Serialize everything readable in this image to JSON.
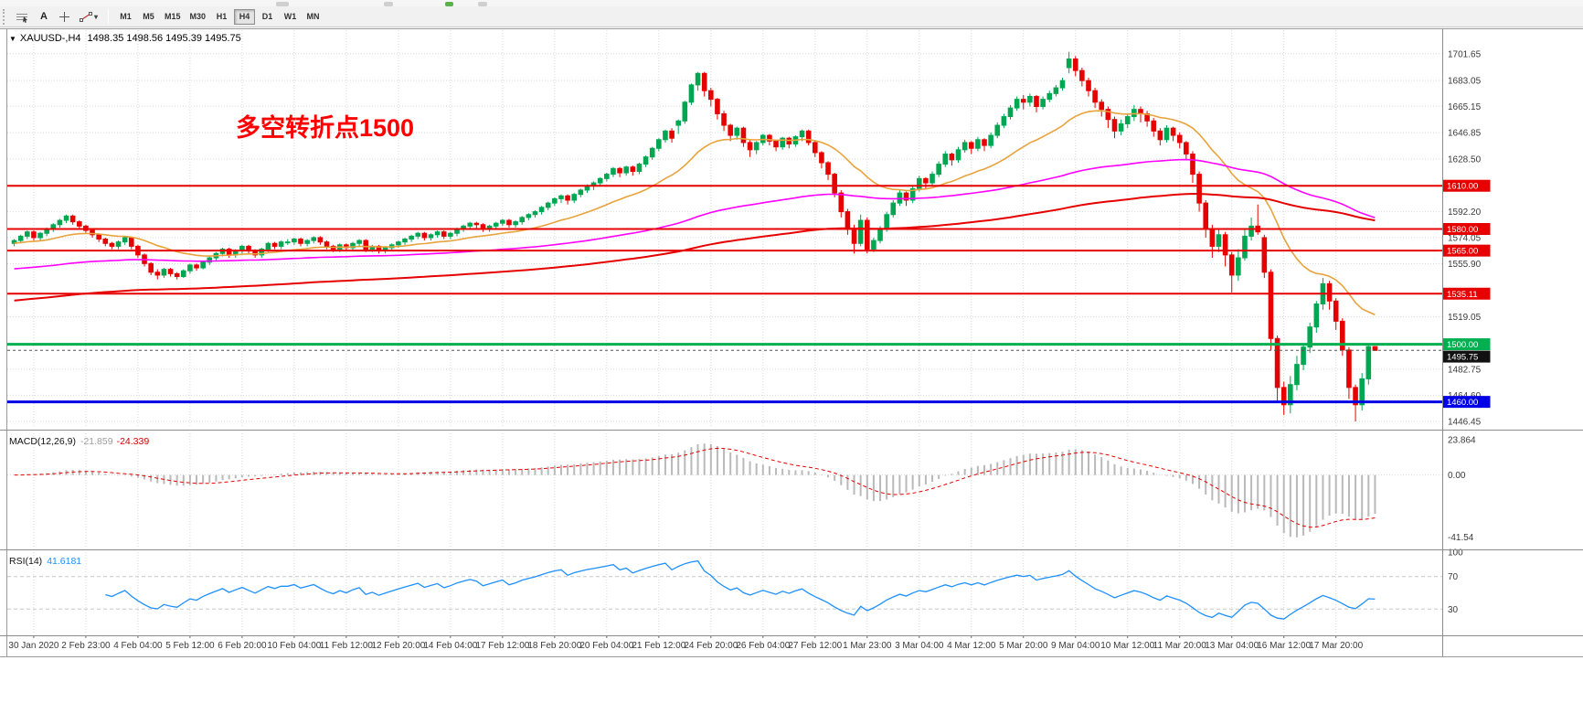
{
  "toolbar": {
    "text_tool_label": "A",
    "timeframes": [
      "M1",
      "M5",
      "M15",
      "M30",
      "H1",
      "H4",
      "D1",
      "W1",
      "MN"
    ],
    "active_timeframe": "H4"
  },
  "chart": {
    "title": "XAUUSD-,H4",
    "ohlc": "1498.35 1498.56 1495.39 1495.75",
    "annotation": {
      "text": "多空转折点1500",
      "color": "#fd0000"
    }
  },
  "chart_data": {
    "type": "candlestick",
    "symbol": "XAUUSD-",
    "period": "H4",
    "colors": {
      "up": "#00a651",
      "down": "#e60000",
      "grid": "#d9d9d9"
    },
    "price_range": [
      1442,
      1718
    ],
    "y_ticks": [
      1701.65,
      1683.05,
      1665.15,
      1646.85,
      1628.5,
      1592.2,
      1574.05,
      1555.9,
      1519.05,
      1482.75,
      1464.6,
      1446.45
    ],
    "x_labels": [
      "30 Jan 2020",
      "2 Feb 23:00",
      "4 Feb 04:00",
      "5 Feb 12:00",
      "6 Feb 20:00",
      "10 Feb 04:00",
      "11 Feb 12:00",
      "12 Feb 20:00",
      "14 Feb 04:00",
      "17 Feb 12:00",
      "18 Feb 20:00",
      "20 Feb 04:00",
      "21 Feb 12:00",
      "24 Feb 20:00",
      "26 Feb 04:00",
      "27 Feb 12:00",
      "1 Mar 23:00",
      "3 Mar 04:00",
      "4 Mar 12:00",
      "5 Mar 20:00",
      "9 Mar 04:00",
      "10 Mar 12:00",
      "11 Mar 20:00",
      "13 Mar 04:00",
      "16 Mar 12:00",
      "17 Mar 20:00"
    ],
    "hlines": [
      {
        "price": 1610.0,
        "label": "1610.00",
        "color": "#e60000",
        "width": 2
      },
      {
        "price": 1580.0,
        "label": "1580.00",
        "color": "#e60000",
        "width": 2
      },
      {
        "price": 1565.0,
        "label": "1565.00",
        "color": "#e60000",
        "width": 2
      },
      {
        "price": 1535.11,
        "label": "1535.11",
        "color": "#e60000",
        "width": 2
      },
      {
        "price": 1500.0,
        "label": "1500.00",
        "color": "#00b050",
        "width": 3
      },
      {
        "price": 1460.0,
        "label": "1460.00",
        "color": "#0000e6",
        "width": 3
      }
    ],
    "current_price": {
      "value": 1495.75,
      "label": "1495.75",
      "badge_color": "#111111"
    },
    "moving_averages": [
      {
        "name": "ma-fast",
        "period": 24,
        "seed": 1570,
        "color": "#e8a33c",
        "width": 1.6
      },
      {
        "name": "ma-mid",
        "period": 120,
        "seed": 1552,
        "color": "#ff00ff",
        "width": 1.6
      },
      {
        "name": "ma-slow",
        "period": 220,
        "seed": 1530,
        "color": "#e60000",
        "width": 2
      }
    ],
    "indicators": {
      "macd": {
        "label": "MACD(12,26,9)",
        "value_main": "-21.859",
        "value_signal": "-24.339",
        "fast": 12,
        "slow": 26,
        "signal": 9,
        "hist_color": "#b9b9b9",
        "signal_color": "#e60000",
        "axis": [
          {
            "v": 23.864,
            "label": "23.864"
          },
          {
            "v": 0,
            "label": "0.00"
          },
          {
            "v": -41.54,
            "label": "-41.54"
          }
        ]
      },
      "rsi": {
        "label": "RSI(14)",
        "value": "41.6181",
        "period": 14,
        "color": "#1e90ff",
        "levels": [
          70,
          30
        ],
        "axis": [
          {
            "v": 100,
            "label": "100"
          },
          {
            "v": 70,
            "label": "70"
          },
          {
            "v": 30,
            "label": "30"
          }
        ]
      }
    },
    "candles": [
      [
        1570,
        1573,
        1568,
        1572
      ],
      [
        1572,
        1576,
        1570,
        1575
      ],
      [
        1575,
        1579,
        1573,
        1578
      ],
      [
        1578,
        1579,
        1572,
        1574
      ],
      [
        1574,
        1578,
        1572,
        1577
      ],
      [
        1577,
        1581,
        1575,
        1580
      ],
      [
        1580,
        1584,
        1578,
        1583
      ],
      [
        1583,
        1587,
        1581,
        1586
      ],
      [
        1586,
        1590,
        1584,
        1589
      ],
      [
        1589,
        1590,
        1583,
        1585
      ],
      [
        1585,
        1586,
        1580,
        1582
      ],
      [
        1582,
        1583,
        1577,
        1579
      ],
      [
        1579,
        1580,
        1574,
        1576
      ],
      [
        1576,
        1577,
        1571,
        1573
      ],
      [
        1573,
        1574,
        1568,
        1570
      ],
      [
        1570,
        1571,
        1566,
        1568
      ],
      [
        1568,
        1572,
        1566,
        1571
      ],
      [
        1571,
        1575,
        1569,
        1574
      ],
      [
        1574,
        1574,
        1566,
        1568
      ],
      [
        1568,
        1569,
        1560,
        1562
      ],
      [
        1562,
        1563,
        1554,
        1556
      ],
      [
        1556,
        1557,
        1548,
        1550
      ],
      [
        1550,
        1552,
        1545,
        1548
      ],
      [
        1548,
        1553,
        1546,
        1552
      ],
      [
        1552,
        1553,
        1547,
        1549
      ],
      [
        1549,
        1550,
        1545,
        1547
      ],
      [
        1547,
        1552,
        1546,
        1551
      ],
      [
        1551,
        1556,
        1549,
        1555
      ],
      [
        1555,
        1556,
        1551,
        1553
      ],
      [
        1553,
        1558,
        1552,
        1557
      ],
      [
        1557,
        1561,
        1555,
        1560
      ],
      [
        1560,
        1564,
        1558,
        1563
      ],
      [
        1563,
        1567,
        1561,
        1566
      ],
      [
        1566,
        1567,
        1560,
        1562
      ],
      [
        1562,
        1566,
        1560,
        1565
      ],
      [
        1565,
        1569,
        1563,
        1568
      ],
      [
        1568,
        1569,
        1563,
        1565
      ],
      [
        1565,
        1566,
        1560,
        1562
      ],
      [
        1562,
        1567,
        1560,
        1566
      ],
      [
        1566,
        1571,
        1564,
        1570
      ],
      [
        1570,
        1571,
        1566,
        1568
      ],
      [
        1568,
        1572,
        1566,
        1571
      ],
      [
        1571,
        1573,
        1569,
        1571
      ],
      [
        1571,
        1574,
        1569,
        1573
      ],
      [
        1573,
        1574,
        1568,
        1570
      ],
      [
        1570,
        1573,
        1568,
        1572
      ],
      [
        1572,
        1575,
        1570,
        1574
      ],
      [
        1574,
        1575,
        1569,
        1571
      ],
      [
        1571,
        1572,
        1566,
        1568
      ],
      [
        1568,
        1569,
        1564,
        1566
      ],
      [
        1566,
        1570,
        1564,
        1569
      ],
      [
        1569,
        1570,
        1565,
        1567
      ],
      [
        1567,
        1571,
        1565,
        1570
      ],
      [
        1570,
        1573,
        1568,
        1572
      ],
      [
        1572,
        1573,
        1564,
        1566
      ],
      [
        1566,
        1569,
        1564,
        1568
      ],
      [
        1568,
        1569,
        1563,
        1565
      ],
      [
        1565,
        1568,
        1563,
        1567
      ],
      [
        1567,
        1570,
        1565,
        1569
      ],
      [
        1569,
        1572,
        1567,
        1571
      ],
      [
        1571,
        1574,
        1569,
        1573
      ],
      [
        1573,
        1576,
        1571,
        1575
      ],
      [
        1575,
        1578,
        1573,
        1577
      ],
      [
        1577,
        1578,
        1572,
        1574
      ],
      [
        1574,
        1577,
        1572,
        1576
      ],
      [
        1576,
        1579,
        1574,
        1578
      ],
      [
        1578,
        1579,
        1573,
        1575
      ],
      [
        1575,
        1578,
        1573,
        1577
      ],
      [
        1577,
        1581,
        1575,
        1580
      ],
      [
        1580,
        1583,
        1578,
        1582
      ],
      [
        1582,
        1585,
        1580,
        1584
      ],
      [
        1584,
        1585,
        1580,
        1583
      ],
      [
        1583,
        1584,
        1578,
        1580
      ],
      [
        1580,
        1583,
        1578,
        1582
      ],
      [
        1582,
        1585,
        1580,
        1584
      ],
      [
        1584,
        1587,
        1582,
        1586
      ],
      [
        1586,
        1587,
        1581,
        1583
      ],
      [
        1583,
        1586,
        1581,
        1585
      ],
      [
        1585,
        1589,
        1583,
        1588
      ],
      [
        1588,
        1591,
        1586,
        1590
      ],
      [
        1590,
        1593,
        1588,
        1592
      ],
      [
        1592,
        1596,
        1590,
        1595
      ],
      [
        1595,
        1599,
        1593,
        1598
      ],
      [
        1598,
        1602,
        1596,
        1601
      ],
      [
        1601,
        1604,
        1598,
        1603
      ],
      [
        1603,
        1604,
        1597,
        1600
      ],
      [
        1600,
        1605,
        1598,
        1604
      ],
      [
        1604,
        1608,
        1602,
        1607
      ],
      [
        1607,
        1611,
        1605,
        1610
      ],
      [
        1610,
        1613,
        1607,
        1612
      ],
      [
        1612,
        1616,
        1610,
        1615
      ],
      [
        1615,
        1619,
        1613,
        1618
      ],
      [
        1618,
        1623,
        1616,
        1622
      ],
      [
        1622,
        1623,
        1616,
        1619
      ],
      [
        1619,
        1624,
        1617,
        1623
      ],
      [
        1623,
        1624,
        1617,
        1620
      ],
      [
        1620,
        1626,
        1618,
        1625
      ],
      [
        1625,
        1631,
        1623,
        1630
      ],
      [
        1630,
        1637,
        1628,
        1636
      ],
      [
        1636,
        1643,
        1634,
        1642
      ],
      [
        1642,
        1649,
        1640,
        1648
      ],
      [
        1648,
        1650,
        1640,
        1643
      ],
      [
        1652,
        1656,
        1646,
        1655
      ],
      [
        1655,
        1669,
        1653,
        1668
      ],
      [
        1668,
        1681,
        1666,
        1680
      ],
      [
        1680,
        1689,
        1676,
        1688
      ],
      [
        1688,
        1689,
        1672,
        1676
      ],
      [
        1676,
        1678,
        1665,
        1670
      ],
      [
        1670,
        1671,
        1656,
        1660
      ],
      [
        1660,
        1662,
        1648,
        1652
      ],
      [
        1652,
        1653,
        1641,
        1645
      ],
      [
        1645,
        1651,
        1642,
        1650
      ],
      [
        1650,
        1651,
        1637,
        1640
      ],
      [
        1640,
        1642,
        1630,
        1635
      ],
      [
        1635,
        1641,
        1632,
        1640
      ],
      [
        1640,
        1646,
        1638,
        1645
      ],
      [
        1645,
        1646,
        1638,
        1641
      ],
      [
        1641,
        1642,
        1634,
        1637
      ],
      [
        1637,
        1644,
        1635,
        1643
      ],
      [
        1643,
        1644,
        1636,
        1639
      ],
      [
        1639,
        1645,
        1637,
        1644
      ],
      [
        1644,
        1649,
        1641,
        1648
      ],
      [
        1648,
        1649,
        1638,
        1640
      ],
      [
        1640,
        1641,
        1630,
        1633
      ],
      [
        1633,
        1634,
        1622,
        1626
      ],
      [
        1626,
        1627,
        1614,
        1618
      ],
      [
        1618,
        1619,
        1602,
        1605
      ],
      [
        1605,
        1607,
        1588,
        1592
      ],
      [
        1592,
        1594,
        1576,
        1580
      ],
      [
        1580,
        1583,
        1563,
        1570
      ],
      [
        1570,
        1590,
        1568,
        1586
      ],
      [
        1586,
        1588,
        1563,
        1566
      ],
      [
        1566,
        1574,
        1564,
        1572
      ],
      [
        1572,
        1582,
        1570,
        1580
      ],
      [
        1580,
        1592,
        1578,
        1590
      ],
      [
        1590,
        1600,
        1588,
        1598
      ],
      [
        1598,
        1607,
        1596,
        1605
      ],
      [
        1605,
        1606,
        1596,
        1600
      ],
      [
        1600,
        1610,
        1598,
        1608
      ],
      [
        1608,
        1617,
        1606,
        1615
      ],
      [
        1615,
        1616,
        1608,
        1612
      ],
      [
        1612,
        1620,
        1610,
        1618
      ],
      [
        1618,
        1627,
        1616,
        1625
      ],
      [
        1625,
        1634,
        1623,
        1632
      ],
      [
        1632,
        1633,
        1624,
        1628
      ],
      [
        1628,
        1637,
        1626,
        1635
      ],
      [
        1635,
        1642,
        1633,
        1640
      ],
      [
        1640,
        1641,
        1632,
        1636
      ],
      [
        1636,
        1644,
        1634,
        1642
      ],
      [
        1642,
        1643,
        1634,
        1638
      ],
      [
        1638,
        1647,
        1636,
        1645
      ],
      [
        1645,
        1654,
        1643,
        1652
      ],
      [
        1652,
        1660,
        1650,
        1658
      ],
      [
        1658,
        1666,
        1656,
        1664
      ],
      [
        1664,
        1672,
        1662,
        1670
      ],
      [
        1670,
        1673,
        1663,
        1668
      ],
      [
        1668,
        1674,
        1665,
        1672
      ],
      [
        1672,
        1673,
        1661,
        1665
      ],
      [
        1665,
        1672,
        1663,
        1670
      ],
      [
        1670,
        1676,
        1668,
        1674
      ],
      [
        1674,
        1680,
        1672,
        1678
      ],
      [
        1678,
        1685,
        1676,
        1683
      ],
      [
        1692,
        1703,
        1688,
        1698
      ],
      [
        1698,
        1700,
        1686,
        1690
      ],
      [
        1690,
        1692,
        1679,
        1683
      ],
      [
        1683,
        1685,
        1672,
        1676
      ],
      [
        1676,
        1678,
        1664,
        1668
      ],
      [
        1668,
        1670,
        1658,
        1663
      ],
      [
        1663,
        1665,
        1650,
        1656
      ],
      [
        1656,
        1658,
        1643,
        1648
      ],
      [
        1648,
        1656,
        1645,
        1653
      ],
      [
        1653,
        1660,
        1650,
        1658
      ],
      [
        1658,
        1666,
        1655,
        1663
      ],
      [
        1663,
        1665,
        1654,
        1660
      ],
      [
        1660,
        1662,
        1651,
        1655
      ],
      [
        1655,
        1657,
        1644,
        1648
      ],
      [
        1648,
        1650,
        1638,
        1642
      ],
      [
        1642,
        1652,
        1640,
        1650
      ],
      [
        1650,
        1651,
        1641,
        1645
      ],
      [
        1645,
        1647,
        1636,
        1640
      ],
      [
        1640,
        1641,
        1628,
        1632
      ],
      [
        1632,
        1634,
        1612,
        1618
      ],
      [
        1618,
        1620,
        1592,
        1598
      ],
      [
        1598,
        1600,
        1574,
        1580
      ],
      [
        1580,
        1583,
        1560,
        1568
      ],
      [
        1568,
        1580,
        1564,
        1576
      ],
      [
        1576,
        1578,
        1554,
        1562
      ],
      [
        1562,
        1564,
        1536,
        1548
      ],
      [
        1548,
        1566,
        1544,
        1560
      ],
      [
        1560,
        1580,
        1558,
        1575
      ],
      [
        1575,
        1588,
        1572,
        1582
      ],
      [
        1582,
        1597,
        1576,
        1578
      ],
      [
        1574,
        1576,
        1546,
        1550
      ],
      [
        1550,
        1552,
        1496,
        1504
      ],
      [
        1504,
        1506,
        1460,
        1470
      ],
      [
        1470,
        1474,
        1451,
        1458
      ],
      [
        1458,
        1478,
        1452,
        1472
      ],
      [
        1472,
        1492,
        1468,
        1486
      ],
      [
        1486,
        1500,
        1482,
        1498
      ],
      [
        1498,
        1515,
        1494,
        1512
      ],
      [
        1512,
        1530,
        1508,
        1528
      ],
      [
        1528,
        1546,
        1524,
        1542
      ],
      [
        1542,
        1544,
        1524,
        1530
      ],
      [
        1530,
        1532,
        1510,
        1516
      ],
      [
        1516,
        1518,
        1492,
        1496
      ],
      [
        1496,
        1498,
        1462,
        1470
      ],
      [
        1470,
        1472,
        1446.45,
        1458
      ],
      [
        1458,
        1480,
        1454,
        1476
      ],
      [
        1476,
        1499,
        1472,
        1498.35
      ],
      [
        1498.35,
        1498.56,
        1495.39,
        1495.75
      ]
    ]
  }
}
